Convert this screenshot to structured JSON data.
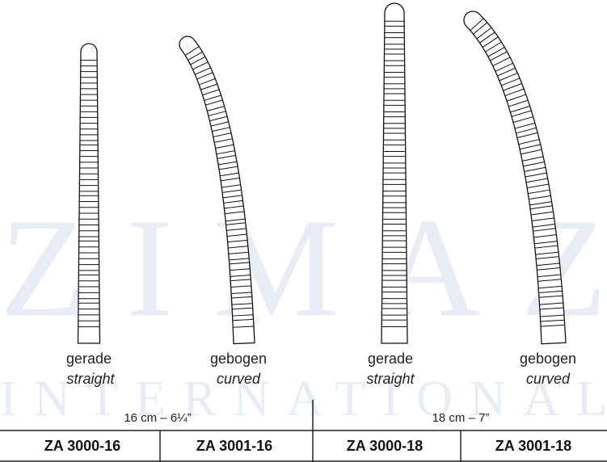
{
  "watermark": {
    "line1": "ZIMAZ",
    "line2": "INTERNATIONAL"
  },
  "instruments": [
    {
      "label_de": "gerade",
      "label_en": "straight"
    },
    {
      "label_de": "gebogen",
      "label_en": "curved"
    },
    {
      "label_de": "gerade",
      "label_en": "straight"
    },
    {
      "label_de": "gebogen",
      "label_en": "curved"
    }
  ],
  "sizes": [
    "16 cm – 6¼”",
    "18 cm – 7”"
  ],
  "table": {
    "rows": [
      [
        "ZA 3000-16",
        "ZA 3001-16",
        "ZA 3000-18",
        "ZA 3001-18"
      ]
    ]
  }
}
